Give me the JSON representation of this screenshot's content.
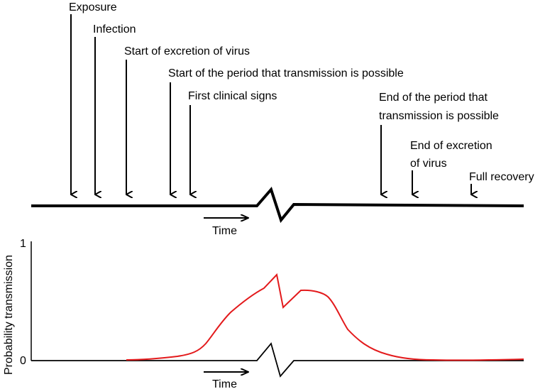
{
  "timeline": {
    "events": [
      {
        "id": "exposure",
        "label": "Exposure"
      },
      {
        "id": "infection",
        "label": "Infection"
      },
      {
        "id": "start-excretion",
        "label": "Start of excretion of virus"
      },
      {
        "id": "start-transmission",
        "label": "Start of the period that transmission is possible"
      },
      {
        "id": "first-clinical-signs",
        "label": "First clinical signs"
      },
      {
        "id": "end-transmission",
        "label_lines": [
          "End of the period that",
          "transmission is possible"
        ]
      },
      {
        "id": "end-excretion",
        "label_lines": [
          "End of excretion",
          "of virus"
        ]
      },
      {
        "id": "full-recovery",
        "label": "Full recovery"
      }
    ],
    "time_label": "Time"
  },
  "plot": {
    "ylabel": "Probability transmission",
    "y_tick_top": "1",
    "y_tick_bottom": "0",
    "time_label": "Time",
    "curve_color": "#e31a1c",
    "axis_color": "#000000"
  }
}
